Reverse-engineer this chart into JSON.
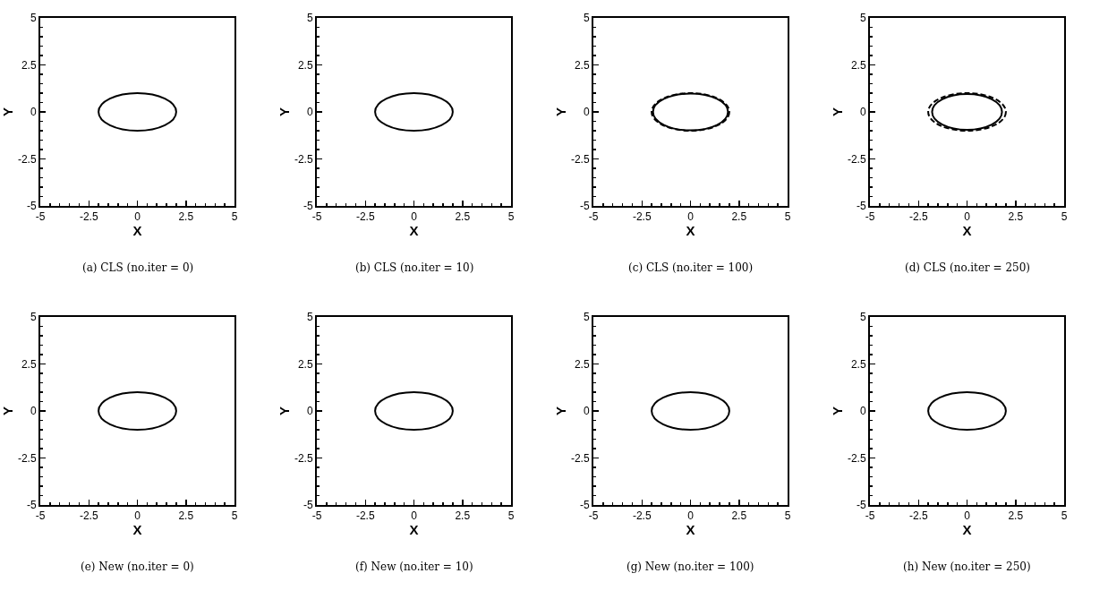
{
  "chart_data": [
    {
      "type": "line",
      "xlabel": "X",
      "ylabel": "Y",
      "xlim": [
        -5,
        5
      ],
      "ylim": [
        -5,
        5
      ],
      "xticks": [
        -5,
        -2.5,
        0,
        2.5,
        5
      ],
      "yticks": [
        -5,
        -2.5,
        0,
        2.5,
        5
      ],
      "annotations": [
        "(a) CLS (no.iter = 0)"
      ]
    },
    {
      "type": "line",
      "xlabel": "X",
      "ylabel": "Y",
      "xlim": [
        -5,
        5
      ],
      "ylim": [
        -5,
        5
      ],
      "xticks": [
        -5,
        -2.5,
        0,
        2.5,
        5
      ],
      "yticks": [
        -5,
        -2.5,
        0,
        2.5,
        5
      ],
      "annotations": [
        "(b) CLS (no.iter = 10)"
      ]
    },
    {
      "type": "line",
      "xlabel": "X",
      "ylabel": "Y",
      "xlim": [
        -5,
        5
      ],
      "ylim": [
        -5,
        5
      ],
      "xticks": [
        -5,
        -2.5,
        0,
        2.5,
        5
      ],
      "yticks": [
        -5,
        -2.5,
        0,
        2.5,
        5
      ],
      "annotations": [
        "(c) CLS (no.iter = 100)"
      ]
    },
    {
      "type": "line",
      "xlabel": "X",
      "ylabel": "Y",
      "xlim": [
        -5,
        5
      ],
      "ylim": [
        -5,
        5
      ],
      "xticks": [
        -5,
        -2.5,
        0,
        2.5,
        5
      ],
      "yticks": [
        -5,
        -2.5,
        0,
        2.5,
        5
      ],
      "annotations": [
        "(d) CLS (no.iter = 250)"
      ]
    },
    {
      "type": "line",
      "xlabel": "X",
      "ylabel": "Y",
      "xlim": [
        -5,
        5
      ],
      "ylim": [
        -5,
        5
      ],
      "xticks": [
        -5,
        -2.5,
        0,
        2.5,
        5
      ],
      "yticks": [
        -5,
        -2.5,
        0,
        2.5,
        5
      ],
      "annotations": [
        "(e) New (no.iter = 0)"
      ]
    },
    {
      "type": "line",
      "xlabel": "X",
      "ylabel": "Y",
      "xlim": [
        -5,
        5
      ],
      "ylim": [
        -5,
        5
      ],
      "xticks": [
        -5,
        -2.5,
        0,
        2.5,
        5
      ],
      "yticks": [
        -5,
        -2.5,
        0,
        2.5,
        5
      ],
      "annotations": [
        "(f) New (no.iter = 10)"
      ]
    },
    {
      "type": "line",
      "xlabel": "X",
      "ylabel": "Y",
      "xlim": [
        -5,
        5
      ],
      "ylim": [
        -5,
        5
      ],
      "xticks": [
        -5,
        -2.5,
        0,
        2.5,
        5
      ],
      "yticks": [
        -5,
        -2.5,
        0,
        2.5,
        5
      ],
      "annotations": [
        "(g) New (no.iter = 100)"
      ]
    },
    {
      "type": "line",
      "xlabel": "X",
      "ylabel": "Y",
      "xlim": [
        -5,
        5
      ],
      "ylim": [
        -5,
        5
      ],
      "xticks": [
        -5,
        -2.5,
        0,
        2.5,
        5
      ],
      "yticks": [
        -5,
        -2.5,
        0,
        2.5,
        5
      ],
      "annotations": [
        "(h) New (no.iter = 250)"
      ]
    }
  ]
}
